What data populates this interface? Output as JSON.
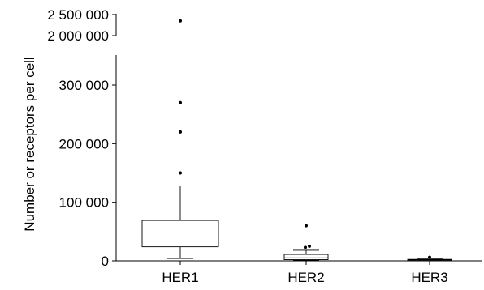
{
  "chart_data": {
    "type": "boxplot",
    "title": "",
    "xlabel": "",
    "ylabel": "Number or receptors per cell",
    "axis_break": {
      "lower_range": [
        0,
        350000
      ],
      "upper_range": [
        2000000,
        2500000
      ]
    },
    "lower_ticks": [
      {
        "value": 0,
        "label": "0"
      },
      {
        "value": 100000,
        "label": "100 000"
      },
      {
        "value": 200000,
        "label": "200 000"
      },
      {
        "value": 300000,
        "label": "300 000"
      }
    ],
    "upper_ticks": [
      {
        "value": 2000000,
        "label": "2 000 000"
      },
      {
        "value": 2500000,
        "label": "2 500 000"
      }
    ],
    "categories": [
      "HER1",
      "HER2",
      "HER3"
    ],
    "boxes": [
      {
        "name": "HER1",
        "whisker_low": 4000,
        "q1": 24000,
        "median": 34000,
        "q3": 69000,
        "whisker_high": 128000,
        "outliers": [
          150000,
          220000,
          270000,
          2350000
        ]
      },
      {
        "name": "HER2",
        "whisker_low": 1000,
        "q1": 2000,
        "median": 5000,
        "q3": 11000,
        "whisker_high": 18000,
        "outliers": [
          23000,
          25000,
          60000
        ]
      },
      {
        "name": "HER3",
        "whisker_low": 500,
        "q1": 1000,
        "median": 1500,
        "q3": 2500,
        "whisker_high": 4000,
        "outliers": [
          6000
        ]
      }
    ]
  }
}
